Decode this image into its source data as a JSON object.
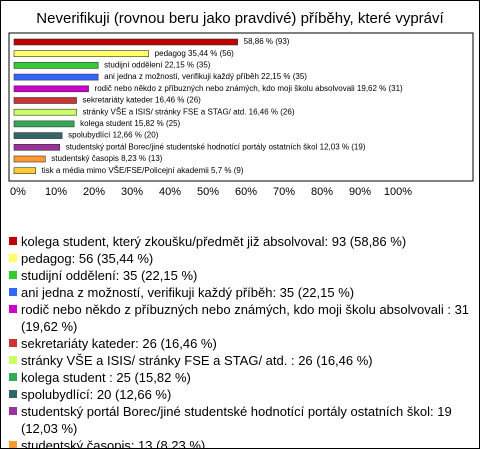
{
  "chart_data": {
    "type": "hbar",
    "title": "Neverifikuji (rovnou beru jako pravdivé) příběhy, které vypráví",
    "categories": [
      "kolega student, který zkoušku/předmět již absolvoval: 93 (58,86 %)",
      "pedagog: 56 (35,44 %)",
      "studijní oddělení: 35 (22,15 %)",
      "ani jedna z možností, verifikuji každý příběh: 35 (22,15 %)",
      "rodič nebo někdo z příbuzných nebo známých, kdo moji školu absolvovali : 31 (19,62 %)",
      "sekretariáty kateder: 26 (16,46 %)",
      "stránky VŠE a ISIS/ stránky FSE a STAG/ atd. : 26 (16,46 %)",
      "kolega student : 25 (15,82 %)",
      "spolubydlící: 20 (12,66 %)",
      "studentský portál Borec/jiné studentské hodnotící portály ostatních škol: 19 (12,03 %)",
      "studentský časopis: 13 (8,23 %)",
      "tisk a média mimo VŠE/FSE/Policejní akademii: 9 (5,7 %)"
    ],
    "values": [
      58.86,
      35.44,
      22.15,
      22.15,
      19.62,
      16.46,
      16.46,
      15.82,
      12.66,
      12.03,
      8.23,
      5.7
    ],
    "value_labels": [
      "58,86 % (93)",
      "pedagog 35,44 % (56)",
      "studijní oddělení 22,15 % (35)",
      "ani jedna z možností, verifikuji každý příběh 22,15 % (35)",
      "rodič nebo někdo z příbuzných nebo známých, kdo moji školu absolvovali  19,62 % (31)",
      "sekretariáty kateder 16,46 % (26)",
      "stránky VŠE a ISIS/ stránky FSE a STAG/ atd.  16,46 % (26)",
      "kolega student  15,82 % (25)",
      "spolubydlící 12,66 % (20)",
      "studentský portál Borec/jiné studentské hodnotící portály ostatních škol 12,03 % (19)",
      "studentský časopis 8,23 % (13)",
      "tisk a média mimo VŠE/FSE/Policejní akademii 5,7 % (9)"
    ],
    "colors": [
      "#c00000",
      "#ffff66",
      "#33cc33",
      "#3366ff",
      "#cc00cc",
      "#cc3333",
      "#ccff66",
      "#33aa55",
      "#336666",
      "#993399",
      "#ff9933",
      "#ffcc33"
    ],
    "xlim": [
      0,
      100
    ],
    "xticks": [
      {
        "value": 0,
        "label": "0%"
      },
      {
        "value": 10,
        "label": "10%"
      },
      {
        "value": 20,
        "label": "20%"
      },
      {
        "value": 30,
        "label": "30%"
      },
      {
        "value": 40,
        "label": "40%"
      },
      {
        "value": 50,
        "label": "50%"
      },
      {
        "value": 60,
        "label": "60%"
      },
      {
        "value": 70,
        "label": "70%"
      },
      {
        "value": 80,
        "label": "80%"
      },
      {
        "value": 90,
        "label": "90%"
      },
      {
        "value": 100,
        "label": "100%"
      }
    ],
    "grid": false
  }
}
